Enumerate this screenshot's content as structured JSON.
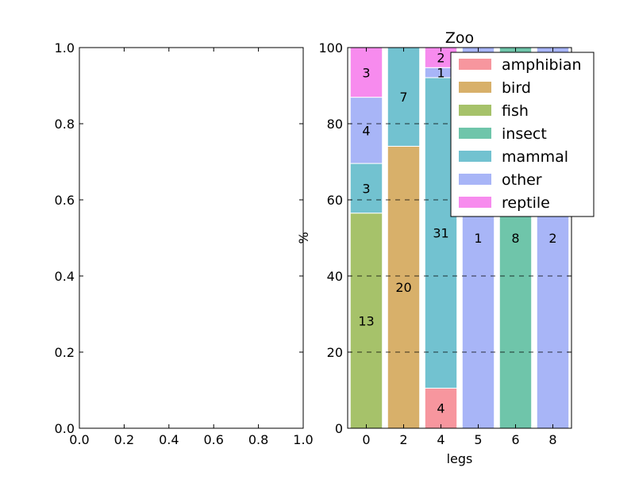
{
  "chart_data": [
    {
      "type": "empty",
      "xlim": [
        0,
        1
      ],
      "ylim": [
        0,
        1
      ],
      "x_ticks": [
        "0.0",
        "0.2",
        "0.4",
        "0.6",
        "0.8",
        "1.0"
      ],
      "y_ticks": [
        "0.0",
        "0.2",
        "0.4",
        "0.6",
        "0.8",
        "1.0"
      ]
    },
    {
      "type": "bar",
      "stacked": true,
      "normalized": true,
      "title": "Zoo",
      "xlabel": "legs",
      "ylabel": "%",
      "ylim": [
        0,
        100
      ],
      "y_ticks": [
        "0",
        "20",
        "40",
        "60",
        "80",
        "100"
      ],
      "grid": "horizontal dashed",
      "legend_position": "top-right",
      "categories": [
        "0",
        "2",
        "4",
        "5",
        "6",
        "8"
      ],
      "series": [
        {
          "name": "amphibian",
          "color": "#f7969e",
          "counts": [
            0,
            0,
            4,
            0,
            0,
            0
          ]
        },
        {
          "name": "bird",
          "color": "#d8b06a",
          "counts": [
            0,
            20,
            0,
            0,
            0,
            0
          ]
        },
        {
          "name": "fish",
          "color": "#a6c26a",
          "counts": [
            13,
            0,
            0,
            0,
            0,
            0
          ]
        },
        {
          "name": "insect",
          "color": "#6fc5aa",
          "counts": [
            0,
            0,
            0,
            0,
            8,
            0
          ]
        },
        {
          "name": "mammal",
          "color": "#72c2d0",
          "counts": [
            3,
            7,
            31,
            0,
            0,
            0
          ]
        },
        {
          "name": "other",
          "color": "#a8b5f7",
          "counts": [
            4,
            0,
            1,
            1,
            0,
            2
          ]
        },
        {
          "name": "reptile",
          "color": "#f78bee",
          "counts": [
            3,
            0,
            2,
            0,
            0,
            0
          ]
        }
      ]
    }
  ]
}
